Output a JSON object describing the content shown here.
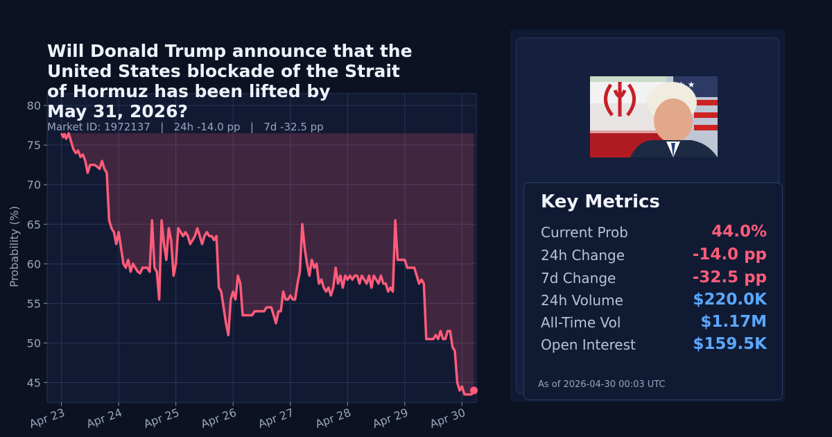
{
  "title": "Will Donald Trump announce that the\nUnited States blockade of the Strait\nof Hormuz has been lifted by\nMay 31, 2026?",
  "subline": "Market ID: 1972137   |   24h -14.0 pp   |   7d -32.5 pp",
  "colors": {
    "line": "#ff5c7a",
    "fill": "#ff5c7a",
    "positive": "#5aa8ff",
    "negative": "#ff5c7a",
    "grid": "#2a3658",
    "plot_bg": "#121a33"
  },
  "metrics": {
    "title": "Key Metrics",
    "rows": [
      {
        "label": "Current Prob",
        "value": "44.0%",
        "color": "#ff5c7a"
      },
      {
        "label": "24h Change",
        "value": "-14.0 pp",
        "color": "#ff5c7a"
      },
      {
        "label": "7d Change",
        "value": "-32.5 pp",
        "color": "#ff5c7a"
      },
      {
        "label": "24h Volume",
        "value": "$220.0K",
        "color": "#5aa8ff"
      },
      {
        "label": "All-Time Vol",
        "value": "$1.17M",
        "color": "#5aa8ff"
      },
      {
        "label": "Open Interest",
        "value": "$159.5K",
        "color": "#5aa8ff"
      }
    ],
    "as_of": "As of 2026-04-30 00:03 UTC"
  },
  "chart_data": {
    "type": "area",
    "xlabel": "",
    "ylabel": "Probability (%)",
    "ylim": [
      42.5,
      81.5
    ],
    "xlim": [
      "2026-04-22 18:00",
      "2026-04-30 06:00"
    ],
    "yticks": [
      45,
      50,
      55,
      60,
      65,
      70,
      75,
      80
    ],
    "xticks": [
      {
        "label": "Apr 23",
        "t": "2026-04-23"
      },
      {
        "label": "Apr 24",
        "t": "2026-04-24"
      },
      {
        "label": "Apr 25",
        "t": "2026-04-25"
      },
      {
        "label": "Apr 26",
        "t": "2026-04-26"
      },
      {
        "label": "Apr 27",
        "t": "2026-04-27"
      },
      {
        "label": "Apr 28",
        "t": "2026-04-28"
      },
      {
        "label": "Apr 29",
        "t": "2026-04-29"
      },
      {
        "label": "Apr 30",
        "t": "2026-04-30"
      }
    ],
    "grid": true,
    "fill_baseline": 76.5,
    "series": [
      {
        "points": [
          [
            "2026-04-23 00:00",
            76.5
          ],
          [
            "2026-04-23 00:45",
            76.0
          ],
          [
            "2026-04-23 01:15",
            76.4
          ],
          [
            "2026-04-23 02:00",
            75.8
          ],
          [
            "2026-04-23 03:00",
            76.5
          ],
          [
            "2026-04-23 04:00",
            75.5
          ],
          [
            "2026-04-23 05:00",
            74.5
          ],
          [
            "2026-04-23 06:00",
            74.0
          ],
          [
            "2026-04-23 07:00",
            74.3
          ],
          [
            "2026-04-23 08:00",
            73.5
          ],
          [
            "2026-04-23 09:00",
            73.8
          ],
          [
            "2026-04-23 10:00",
            73.0
          ],
          [
            "2026-04-23 11:00",
            71.5
          ],
          [
            "2026-04-23 12:00",
            72.5
          ],
          [
            "2026-04-23 14:00",
            72.5
          ],
          [
            "2026-04-23 16:00",
            72.0
          ],
          [
            "2026-04-23 17:00",
            73.0
          ],
          [
            "2026-04-23 18:00",
            72.0
          ],
          [
            "2026-04-23 19:00",
            71.5
          ],
          [
            "2026-04-23 20:00",
            65.5
          ],
          [
            "2026-04-23 21:00",
            64.5
          ],
          [
            "2026-04-23 22:00",
            64.0
          ],
          [
            "2026-04-23 23:00",
            62.5
          ],
          [
            "2026-04-24 00:00",
            64.0
          ],
          [
            "2026-04-24 01:00",
            62.0
          ],
          [
            "2026-04-24 02:00",
            60.0
          ],
          [
            "2026-04-24 03:00",
            59.5
          ],
          [
            "2026-04-24 04:00",
            60.5
          ],
          [
            "2026-04-24 05:00",
            59.0
          ],
          [
            "2026-04-24 06:00",
            60.0
          ],
          [
            "2026-04-24 07:00",
            59.5
          ],
          [
            "2026-04-24 08:00",
            59.0
          ],
          [
            "2026-04-24 09:00",
            58.8
          ],
          [
            "2026-04-24 10:00",
            59.5
          ],
          [
            "2026-04-24 12:00",
            59.5
          ],
          [
            "2026-04-24 13:00",
            59.0
          ],
          [
            "2026-04-24 14:00",
            65.5
          ],
          [
            "2026-04-24 15:00",
            59.5
          ],
          [
            "2026-04-24 16:00",
            59.0
          ],
          [
            "2026-04-24 17:00",
            55.5
          ],
          [
            "2026-04-24 18:00",
            65.5
          ],
          [
            "2026-04-24 19:00",
            62.5
          ],
          [
            "2026-04-24 20:00",
            60.5
          ],
          [
            "2026-04-24 21:00",
            64.5
          ],
          [
            "2026-04-24 22:00",
            63.0
          ],
          [
            "2026-04-24 23:00",
            58.5
          ],
          [
            "2026-04-25 00:00",
            60.0
          ],
          [
            "2026-04-25 01:00",
            64.5
          ],
          [
            "2026-04-25 02:00",
            64.0
          ],
          [
            "2026-04-25 03:00",
            63.5
          ],
          [
            "2026-04-25 04:00",
            64.0
          ],
          [
            "2026-04-25 05:00",
            63.5
          ],
          [
            "2026-04-25 06:00",
            62.5
          ],
          [
            "2026-04-25 07:00",
            63.0
          ],
          [
            "2026-04-25 08:00",
            63.5
          ],
          [
            "2026-04-25 09:00",
            64.5
          ],
          [
            "2026-04-25 10:00",
            63.5
          ],
          [
            "2026-04-25 11:00",
            62.5
          ],
          [
            "2026-04-25 12:00",
            63.5
          ],
          [
            "2026-04-25 13:00",
            64.0
          ],
          [
            "2026-04-25 14:00",
            63.5
          ],
          [
            "2026-04-25 15:00",
            63.5
          ],
          [
            "2026-04-25 16:00",
            63.0
          ],
          [
            "2026-04-25 17:00",
            63.5
          ],
          [
            "2026-04-25 18:00",
            57.0
          ],
          [
            "2026-04-25 19:00",
            56.5
          ],
          [
            "2026-04-25 20:00",
            54.5
          ],
          [
            "2026-04-25 21:00",
            52.5
          ],
          [
            "2026-04-25 22:00",
            51.0
          ],
          [
            "2026-04-25 23:00",
            55.5
          ],
          [
            "2026-04-26 00:00",
            56.5
          ],
          [
            "2026-04-26 01:00",
            55.5
          ],
          [
            "2026-04-26 02:00",
            58.5
          ],
          [
            "2026-04-26 03:00",
            57.5
          ],
          [
            "2026-04-26 04:00",
            53.5
          ],
          [
            "2026-04-26 06:00",
            53.5
          ],
          [
            "2026-04-26 08:00",
            53.5
          ],
          [
            "2026-04-26 09:00",
            54.0
          ],
          [
            "2026-04-26 11:00",
            54.0
          ],
          [
            "2026-04-26 13:00",
            54.0
          ],
          [
            "2026-04-26 14:00",
            54.5
          ],
          [
            "2026-04-26 16:00",
            54.5
          ],
          [
            "2026-04-26 17:00",
            53.5
          ],
          [
            "2026-04-26 18:00",
            52.5
          ],
          [
            "2026-04-26 19:00",
            54.0
          ],
          [
            "2026-04-26 20:00",
            54.0
          ],
          [
            "2026-04-26 21:00",
            56.5
          ],
          [
            "2026-04-26 22:00",
            55.5
          ],
          [
            "2026-04-26 23:00",
            55.5
          ],
          [
            "2026-04-27 00:00",
            56.0
          ],
          [
            "2026-04-27 01:00",
            55.5
          ],
          [
            "2026-04-27 02:00",
            55.5
          ],
          [
            "2026-04-27 03:00",
            57.5
          ],
          [
            "2026-04-27 04:00",
            59.0
          ],
          [
            "2026-04-27 05:00",
            65.0
          ],
          [
            "2026-04-27 06:00",
            62.0
          ],
          [
            "2026-04-27 07:00",
            60.0
          ],
          [
            "2026-04-27 08:00",
            58.5
          ],
          [
            "2026-04-27 09:00",
            60.5
          ],
          [
            "2026-04-27 10:00",
            59.5
          ],
          [
            "2026-04-27 11:00",
            60.0
          ],
          [
            "2026-04-27 12:00",
            57.5
          ],
          [
            "2026-04-27 13:00",
            58.0
          ],
          [
            "2026-04-27 14:00",
            57.0
          ],
          [
            "2026-04-27 15:00",
            56.5
          ],
          [
            "2026-04-27 16:00",
            57.0
          ],
          [
            "2026-04-27 17:00",
            56.0
          ],
          [
            "2026-04-27 18:00",
            57.0
          ],
          [
            "2026-04-27 19:00",
            59.5
          ],
          [
            "2026-04-27 20:00",
            57.5
          ],
          [
            "2026-04-27 21:00",
            58.5
          ],
          [
            "2026-04-27 22:00",
            57.0
          ],
          [
            "2026-04-27 23:00",
            58.5
          ],
          [
            "2026-04-28 00:00",
            58.0
          ],
          [
            "2026-04-28 01:00",
            58.5
          ],
          [
            "2026-04-28 02:00",
            58.0
          ],
          [
            "2026-04-28 03:00",
            58.5
          ],
          [
            "2026-04-28 04:00",
            58.5
          ],
          [
            "2026-04-28 05:00",
            57.5
          ],
          [
            "2026-04-28 06:00",
            58.5
          ],
          [
            "2026-04-28 07:00",
            58.0
          ],
          [
            "2026-04-28 08:00",
            57.5
          ],
          [
            "2026-04-28 09:00",
            58.5
          ],
          [
            "2026-04-28 10:00",
            57.0
          ],
          [
            "2026-04-28 11:00",
            58.5
          ],
          [
            "2026-04-28 12:00",
            58.0
          ],
          [
            "2026-04-28 13:00",
            57.5
          ],
          [
            "2026-04-28 14:00",
            58.5
          ],
          [
            "2026-04-28 15:00",
            57.5
          ],
          [
            "2026-04-28 16:00",
            57.5
          ],
          [
            "2026-04-28 17:00",
            56.5
          ],
          [
            "2026-04-28 18:00",
            57.0
          ],
          [
            "2026-04-28 19:00",
            56.5
          ],
          [
            "2026-04-28 20:00",
            65.5
          ],
          [
            "2026-04-28 21:00",
            60.5
          ],
          [
            "2026-04-28 22:00",
            60.5
          ],
          [
            "2026-04-29 00:00",
            60.5
          ],
          [
            "2026-04-29 01:00",
            59.5
          ],
          [
            "2026-04-29 02:00",
            59.5
          ],
          [
            "2026-04-29 04:00",
            59.5
          ],
          [
            "2026-04-29 05:00",
            58.5
          ],
          [
            "2026-04-29 06:00",
            57.5
          ],
          [
            "2026-04-29 07:00",
            58.0
          ],
          [
            "2026-04-29 08:00",
            57.5
          ],
          [
            "2026-04-29 09:00",
            50.5
          ],
          [
            "2026-04-29 10:00",
            50.5
          ],
          [
            "2026-04-29 12:00",
            50.5
          ],
          [
            "2026-04-29 13:00",
            51.0
          ],
          [
            "2026-04-29 14:00",
            50.5
          ],
          [
            "2026-04-29 15:00",
            51.5
          ],
          [
            "2026-04-29 16:00",
            50.5
          ],
          [
            "2026-04-29 17:00",
            50.5
          ],
          [
            "2026-04-29 18:00",
            51.5
          ],
          [
            "2026-04-29 19:00",
            51.5
          ],
          [
            "2026-04-29 20:00",
            49.5
          ],
          [
            "2026-04-29 21:00",
            49.0
          ],
          [
            "2026-04-29 22:00",
            45.0
          ],
          [
            "2026-04-29 23:00",
            44.0
          ],
          [
            "2026-04-30 00:00",
            44.5
          ],
          [
            "2026-04-30 01:00",
            43.5
          ],
          [
            "2026-04-30 02:00",
            43.5
          ],
          [
            "2026-04-30 03:00",
            43.5
          ],
          [
            "2026-04-30 04:00",
            43.5
          ],
          [
            "2026-04-30 05:00",
            44.0
          ]
        ]
      }
    ]
  }
}
